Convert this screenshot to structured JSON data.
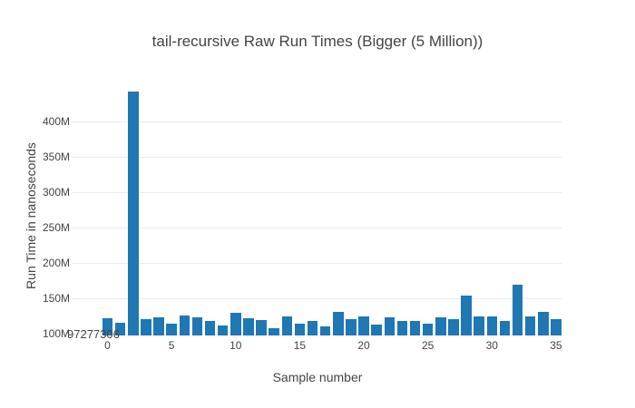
{
  "chart_data": {
    "type": "bar",
    "title": "tail-recursive Raw Run Times (Bigger (5 Million))",
    "xlabel": "Sample number",
    "ylabel": "Run Time in nanoseconds",
    "x": [
      0,
      1,
      2,
      3,
      4,
      5,
      6,
      7,
      8,
      9,
      10,
      11,
      12,
      13,
      14,
      15,
      16,
      17,
      18,
      19,
      20,
      21,
      22,
      23,
      24,
      25,
      26,
      27,
      28,
      29,
      30,
      31,
      32,
      33,
      34,
      35
    ],
    "values": [
      121100000,
      115500000,
      441900000,
      120200000,
      122400000,
      114300000,
      125800000,
      122400000,
      118100000,
      111000000,
      129600000,
      121100000,
      119300000,
      107500000,
      124500000,
      113900000,
      118100000,
      109700000,
      130900000,
      120200000,
      124500000,
      113000000,
      122400000,
      117300000,
      118100000,
      114300000,
      123200000,
      120600000,
      153600000,
      124500000,
      123700000,
      118100000,
      169400000,
      124500000,
      130300000,
      120600000
    ],
    "ylim": [
      97277306,
      447000000
    ],
    "xlim": [
      -2.8,
      35.6
    ],
    "grid": true,
    "legend_position": "none",
    "y_ticks": [
      {
        "value": 100000000,
        "label": "100M"
      },
      {
        "value": 150000000,
        "label": "150M"
      },
      {
        "value": 200000000,
        "label": "200M"
      },
      {
        "value": 250000000,
        "label": "250M"
      },
      {
        "value": 300000000,
        "label": "300M"
      },
      {
        "value": 350000000,
        "label": "350M"
      },
      {
        "value": 400000000,
        "label": "400M"
      }
    ],
    "x_ticks": [
      {
        "value": 0,
        "label": "0"
      },
      {
        "value": 5,
        "label": "5"
      },
      {
        "value": 10,
        "label": "10"
      },
      {
        "value": 15,
        "label": "15"
      },
      {
        "value": 20,
        "label": "20"
      },
      {
        "value": 25,
        "label": "25"
      },
      {
        "value": 30,
        "label": "30"
      },
      {
        "value": 35,
        "label": "35"
      }
    ],
    "annotation": {
      "text": "97277306"
    },
    "colors": {
      "bar": "#1f77b4",
      "grid": "#ebebeb",
      "text": "#444444",
      "background": "#ffffff"
    }
  }
}
